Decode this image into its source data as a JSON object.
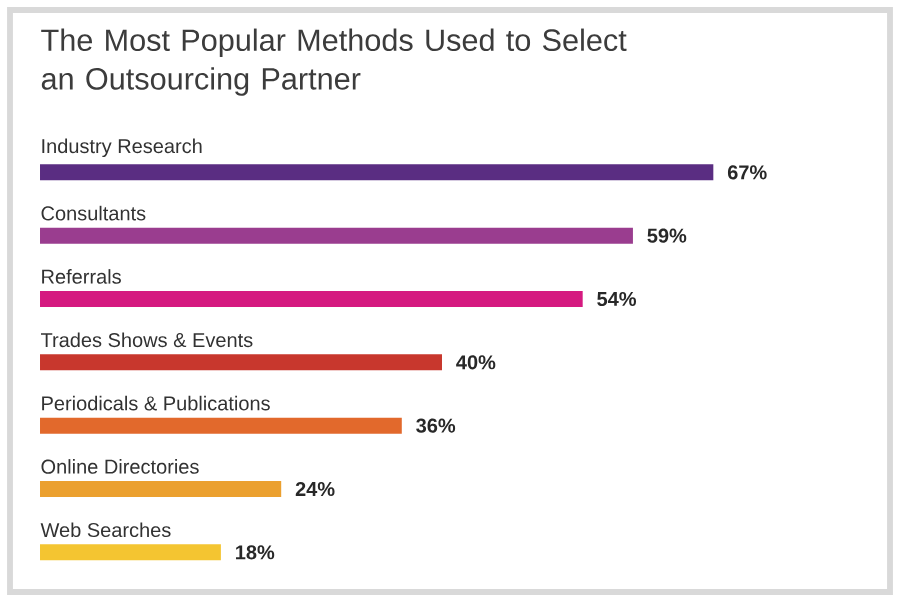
{
  "chart_data": {
    "type": "bar",
    "orientation": "horizontal",
    "title": "The Most Popular Methods Used to Select an Outsourcing Partner",
    "categories": [
      "Industry Research",
      "Consultants",
      "Referrals",
      "Trades Shows & Events",
      "Periodicals & Publications",
      "Online Directories",
      "Web Searches"
    ],
    "values": [
      67,
      59,
      54,
      40,
      36,
      24,
      18
    ],
    "colors": [
      "#5a2d82",
      "#9a3d8f",
      "#d51a80",
      "#c8372d",
      "#e2692c",
      "#eba02f",
      "#f4c531"
    ],
    "value_labels": [
      "67%",
      "59%",
      "54%",
      "40%",
      "36%",
      "24%",
      "18%"
    ]
  }
}
